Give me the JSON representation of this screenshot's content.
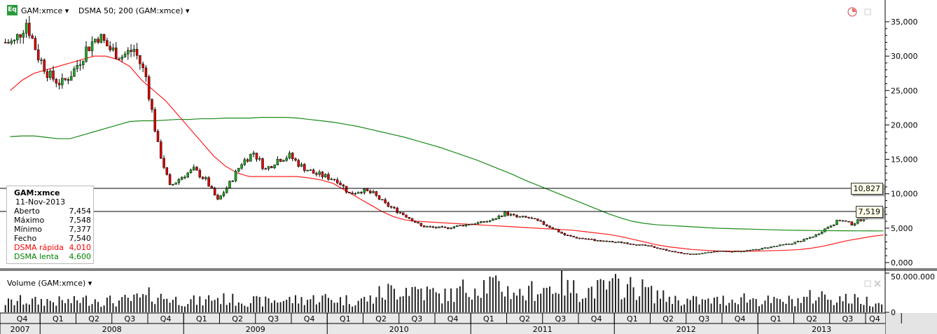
{
  "header": {
    "badge": "Eq",
    "symbol": "GAM:xmce ▾",
    "indicator": "DSMA 50; 200 (GAM:xmce) ▾"
  },
  "legend": {
    "title": "GAM:xmce",
    "date": "11-Nov-2013",
    "rows": [
      {
        "label": "Aberto",
        "value": "7,454",
        "color": "#000000"
      },
      {
        "label": "Máximo",
        "value": "7,548",
        "color": "#000000"
      },
      {
        "label": "Mínimo",
        "value": "7,377",
        "color": "#000000"
      },
      {
        "label": "Fecho",
        "value": "7,540",
        "color": "#000000"
      },
      {
        "label": "DSMA rápida",
        "value": "4,010",
        "color": "#ff0000"
      },
      {
        "label": "DSMA lenta",
        "value": "4,600",
        "color": "#008000"
      }
    ]
  },
  "tags": {
    "crosshair": "10,827",
    "last": "7,519"
  },
  "volume_panel": {
    "title": "Volume (GAM:xmce) ▾"
  },
  "colors": {
    "up": "#22aa22",
    "down": "#dd0000",
    "fast": "#ff2020",
    "slow": "#1a8a1a"
  },
  "chart_data": {
    "type": "candlestick",
    "title": "GAM:xmce",
    "price_axis": {
      "ticks": [
        "0,000",
        "5,000",
        "10,000",
        "15,000",
        "20,000",
        "25,000",
        "30,000",
        "35,000"
      ],
      "tick_values": [
        0,
        5000,
        10000,
        15000,
        20000,
        25000,
        30000,
        35000
      ],
      "range": [
        0,
        35000
      ]
    },
    "volume_axis": {
      "ticks": [
        "0",
        "50.000.000"
      ],
      "range": [
        0,
        50000000
      ]
    },
    "quarters": [
      "Q4",
      "Q1",
      "Q2",
      "Q3",
      "Q4",
      "Q1",
      "Q2",
      "Q3",
      "Q4",
      "Q1",
      "Q2",
      "Q3",
      "Q4",
      "Q1",
      "Q2",
      "Q3",
      "Q4",
      "Q1",
      "Q2",
      "Q3",
      "Q4",
      "Q1",
      "Q2",
      "Q3",
      "Q4"
    ],
    "years": [
      "2007",
      "2008",
      "2009",
      "2010",
      "2011",
      "2012",
      "2013"
    ],
    "start": "2007-10",
    "monthly_close": [
      32000,
      35000,
      30000,
      27000,
      26000,
      28000,
      31000,
      33000,
      31000,
      30000,
      31000,
      27000,
      17000,
      11000,
      12500,
      13500,
      12000,
      9000,
      11500,
      14500,
      16000,
      13500,
      15000,
      15500,
      14000,
      13000,
      12500,
      12000,
      10000,
      10500,
      10000,
      8500,
      7500,
      6500,
      5300,
      5100,
      5000,
      5300,
      5600,
      5800,
      6200,
      7200,
      6600,
      6500,
      5800,
      5000,
      4000,
      3600,
      3400,
      3100,
      3000,
      2900,
      2600,
      2400,
      2000,
      1600,
      1300,
      1200,
      1500,
      1700,
      1600,
      1700,
      1900,
      2200,
      2500,
      2800,
      3300,
      4000,
      5200,
      6200,
      5600,
      6500,
      7200,
      7540
    ],
    "dsma_fast": [
      25000,
      26500,
      27500,
      28000,
      28500,
      29000,
      29500,
      30000,
      30000,
      29500,
      28500,
      26500,
      25000,
      23500,
      21500,
      19500,
      17500,
      15500,
      14000,
      13000,
      12500,
      12500,
      12500,
      12500,
      12500,
      12300,
      12000,
      11500,
      10500,
      9500,
      8500,
      7500,
      6700,
      6200,
      6000,
      5900,
      5800,
      5700,
      5600,
      5500,
      5400,
      5300,
      5200,
      5100,
      5000,
      4900,
      4800,
      4700,
      4500,
      4300,
      4100,
      3800,
      3400,
      3000,
      2600,
      2300,
      2100,
      1900,
      1800,
      1700,
      1650,
      1650,
      1650,
      1700,
      1750,
      1800,
      1900,
      2100,
      2400,
      2800,
      3200,
      3500,
      3800,
      4010
    ],
    "dsma_slow": [
      18300,
      18400,
      18400,
      18200,
      18000,
      18000,
      18500,
      19000,
      19500,
      20000,
      20500,
      20600,
      20600,
      20700,
      20800,
      20800,
      20900,
      20900,
      21000,
      21000,
      21000,
      21100,
      21100,
      21100,
      21000,
      20800,
      20600,
      20400,
      20100,
      19800,
      19400,
      19000,
      18600,
      18200,
      17700,
      17200,
      16700,
      16100,
      15500,
      14900,
      14200,
      13500,
      12800,
      12000,
      11300,
      10600,
      9900,
      9200,
      8500,
      7800,
      7100,
      6500,
      6000,
      5700,
      5500,
      5400,
      5300,
      5200,
      5100,
      5000,
      4950,
      4900,
      4850,
      4800,
      4750,
      4700,
      4680,
      4660,
      4640,
      4630,
      4620,
      4610,
      4605,
      4600
    ],
    "monthly_volume_millions": [
      12,
      14,
      13,
      14,
      13,
      13,
      15,
      16,
      14,
      13,
      15,
      17,
      20,
      18,
      15,
      14,
      13,
      17,
      16,
      15,
      14,
      13,
      14,
      15,
      15,
      16,
      17,
      16,
      15,
      14,
      16,
      22,
      26,
      30,
      28,
      24,
      20,
      22,
      28,
      32,
      34,
      30,
      26,
      22,
      28,
      30,
      34,
      28,
      26,
      28,
      30,
      32,
      30,
      28,
      22,
      18,
      15,
      14,
      13,
      14,
      15,
      18,
      16,
      14,
      13,
      14,
      15,
      18,
      20,
      17,
      16,
      15,
      14,
      12
    ]
  }
}
